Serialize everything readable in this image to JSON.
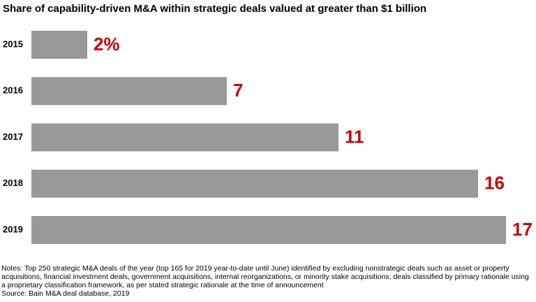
{
  "chart_data": {
    "type": "bar",
    "orientation": "horizontal",
    "title": "Share of capability-driven M&A within strategic deals valued at greater than $1 billion",
    "categories": [
      "2015",
      "2016",
      "2017",
      "2018",
      "2019"
    ],
    "values": [
      2,
      7,
      11,
      16,
      17
    ],
    "value_labels": [
      "2%",
      "7",
      "11",
      "16",
      "17"
    ],
    "color": "#999999",
    "label_color": "#cc0000",
    "notes": "Notes: Top 250 strategic M&A deals of the year (top 165 for 2019 year-to-date until June) identified by excluding nonstrategic deals such as asset or property acquisitions, financial investment deals, government acquisitions, internal reorganizations, or minority stake acquisitions; deals classified by primary rationale using a proprietary classification framework, as per stated strategic rationale at the time of announcement",
    "source": "Source: Bain M&A deal database, 2019"
  }
}
